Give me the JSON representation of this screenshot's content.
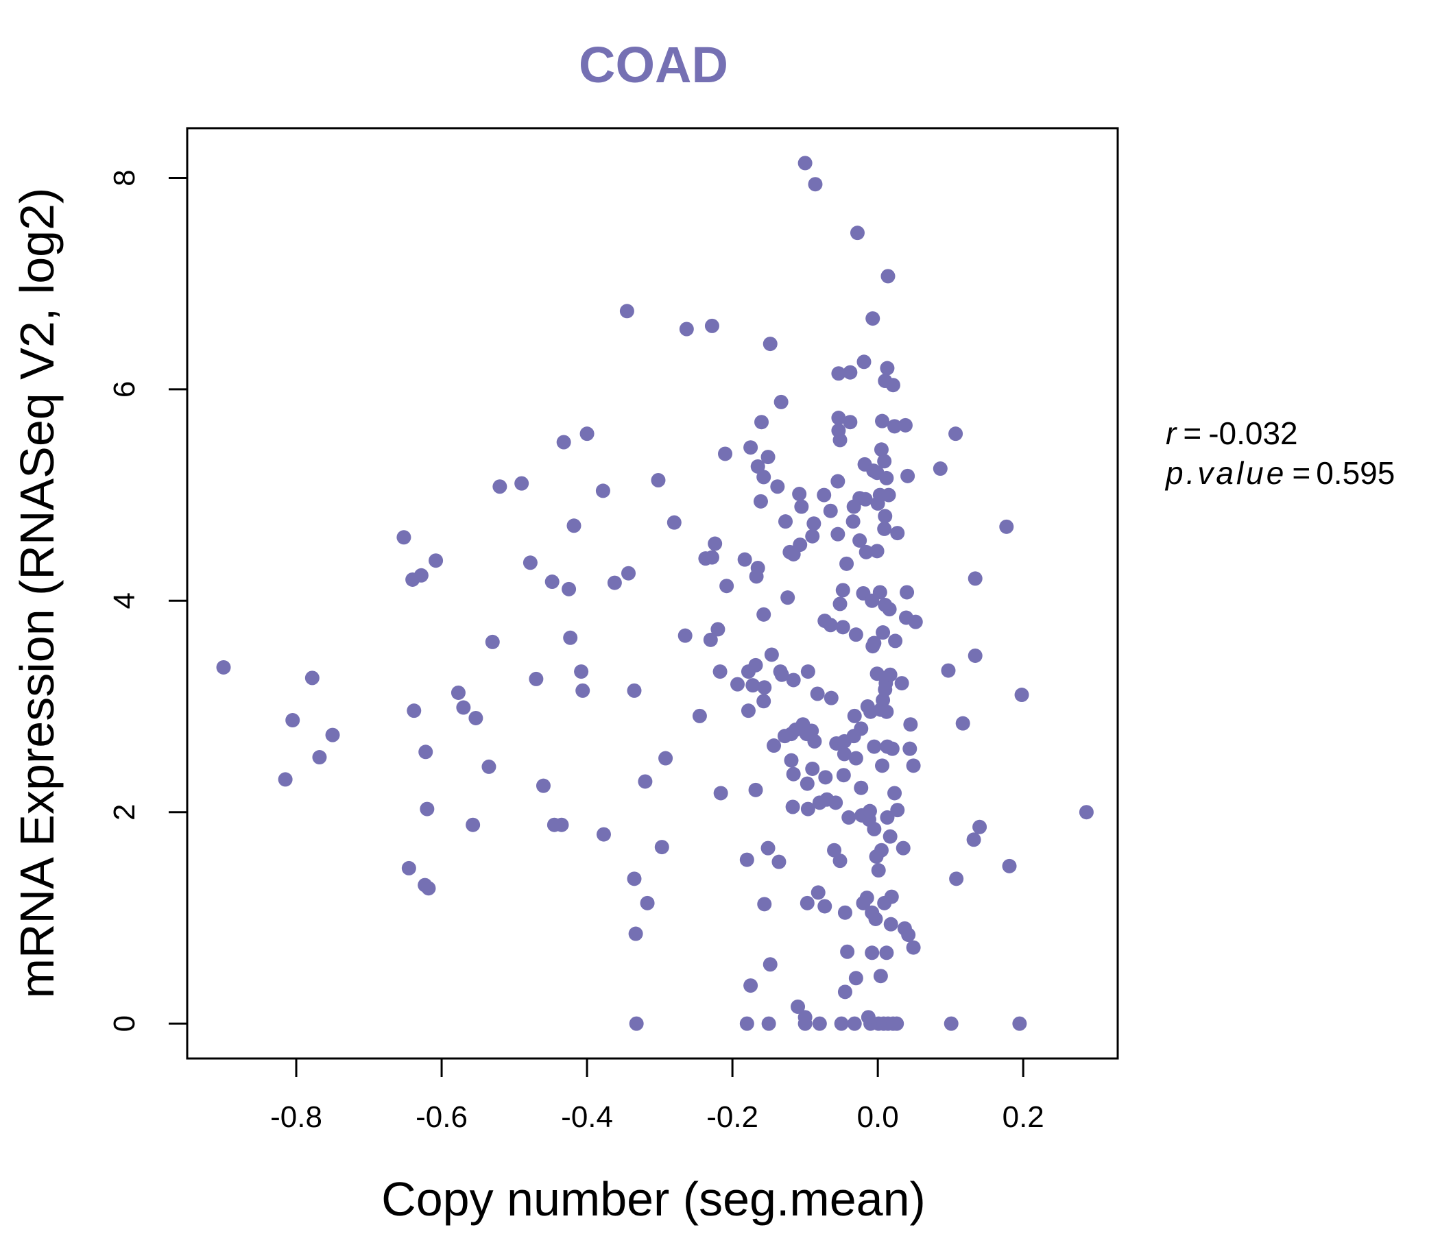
{
  "chart_data": {
    "type": "scatter",
    "title": "COAD",
    "xlabel": "Copy number (seg.mean)",
    "ylabel": "mRNA Expression (RNASeq V2, log2)",
    "xlim": [
      -0.95,
      0.33
    ],
    "ylim": [
      -0.33,
      8.47
    ],
    "xticks": [
      -0.8,
      -0.6,
      -0.4,
      -0.2,
      0.0,
      0.2
    ],
    "xtick_labels": [
      "-0.8",
      "-0.6",
      "-0.4",
      "-0.2",
      "0.0",
      "0.2"
    ],
    "yticks": [
      0,
      2,
      4,
      6,
      8
    ],
    "ytick_labels": [
      "0",
      "2",
      "4",
      "6",
      "8"
    ],
    "grid": false,
    "colors": {
      "title": "#7570b3",
      "points": "#7570b3",
      "axis": "#000000"
    },
    "annotation": {
      "r_label": "r",
      "r_value": "-0.032",
      "p_label": "p.value",
      "p_value": "0.595"
    },
    "series": [
      {
        "points": [
          [
            -0.9,
            3.37
          ],
          [
            -0.815,
            2.31
          ],
          [
            -0.805,
            2.87
          ],
          [
            -0.778,
            3.27
          ],
          [
            -0.768,
            2.52
          ],
          [
            -0.75,
            2.73
          ],
          [
            -0.652,
            4.6
          ],
          [
            -0.645,
            1.47
          ],
          [
            -0.64,
            4.2
          ],
          [
            -0.638,
            2.96
          ],
          [
            -0.628,
            4.24
          ],
          [
            -0.623,
            1.31
          ],
          [
            -0.622,
            2.57
          ],
          [
            -0.62,
            2.03
          ],
          [
            -0.618,
            1.28
          ],
          [
            -0.608,
            4.38
          ],
          [
            -0.577,
            3.13
          ],
          [
            -0.57,
            2.99
          ],
          [
            -0.557,
            1.88
          ],
          [
            -0.553,
            2.89
          ],
          [
            -0.535,
            2.43
          ],
          [
            -0.53,
            3.61
          ],
          [
            -0.52,
            5.08
          ],
          [
            -0.49,
            5.11
          ],
          [
            -0.478,
            4.36
          ],
          [
            -0.47,
            3.26
          ],
          [
            -0.46,
            2.25
          ],
          [
            -0.448,
            4.18
          ],
          [
            -0.445,
            1.88
          ],
          [
            -0.435,
            1.88
          ],
          [
            -0.432,
            5.5
          ],
          [
            -0.425,
            4.11
          ],
          [
            -0.423,
            3.65
          ],
          [
            -0.418,
            4.71
          ],
          [
            -0.408,
            3.33
          ],
          [
            -0.406,
            3.15
          ],
          [
            -0.4,
            5.58
          ],
          [
            -0.378,
            5.04
          ],
          [
            -0.377,
            1.79
          ],
          [
            -0.362,
            4.17
          ],
          [
            -0.345,
            6.74
          ],
          [
            -0.343,
            4.26
          ],
          [
            -0.335,
            1.37
          ],
          [
            -0.335,
            3.15
          ],
          [
            -0.333,
            0.85
          ],
          [
            -0.332,
            0.0
          ],
          [
            -0.32,
            2.29
          ],
          [
            -0.317,
            1.14
          ],
          [
            -0.302,
            5.14
          ],
          [
            -0.297,
            1.67
          ],
          [
            -0.292,
            2.51
          ],
          [
            -0.28,
            4.74
          ],
          [
            -0.265,
            3.67
          ],
          [
            -0.263,
            6.57
          ],
          [
            -0.245,
            2.91
          ],
          [
            -0.237,
            4.4
          ],
          [
            -0.23,
            3.63
          ],
          [
            -0.228,
            6.6
          ],
          [
            -0.228,
            4.41
          ],
          [
            -0.224,
            4.54
          ],
          [
            -0.22,
            3.73
          ],
          [
            -0.217,
            3.33
          ],
          [
            -0.216,
            2.18
          ],
          [
            -0.21,
            5.39
          ],
          [
            -0.208,
            4.14
          ],
          [
            -0.193,
            3.21
          ],
          [
            -0.183,
            4.39
          ],
          [
            -0.18,
            1.55
          ],
          [
            -0.178,
            3.33
          ],
          [
            -0.18,
            0.0
          ],
          [
            -0.178,
            2.96
          ],
          [
            -0.175,
            5.45
          ],
          [
            -0.175,
            0.36
          ],
          [
            -0.172,
            3.2
          ],
          [
            -0.168,
            3.39
          ],
          [
            -0.168,
            2.21
          ],
          [
            -0.167,
            4.23
          ],
          [
            -0.165,
            4.31
          ],
          [
            -0.165,
            5.27
          ],
          [
            -0.161,
            4.94
          ],
          [
            -0.16,
            5.69
          ],
          [
            -0.157,
            5.17
          ],
          [
            -0.157,
            3.05
          ],
          [
            -0.156,
            3.18
          ],
          [
            -0.157,
            3.87
          ],
          [
            -0.156,
            1.13
          ],
          [
            -0.151,
            5.36
          ],
          [
            -0.151,
            1.66
          ],
          [
            -0.15,
            0.0
          ],
          [
            -0.148,
            0.56
          ],
          [
            -0.148,
            6.43
          ],
          [
            -0.146,
            3.49
          ],
          [
            -0.143,
            2.63
          ],
          [
            -0.138,
            5.08
          ],
          [
            -0.136,
            1.53
          ],
          [
            -0.134,
            3.33
          ],
          [
            -0.133,
            5.88
          ],
          [
            -0.132,
            3.3
          ],
          [
            -0.128,
            2.72
          ],
          [
            -0.127,
            4.75
          ],
          [
            -0.124,
            4.03
          ],
          [
            -0.121,
            4.46
          ],
          [
            -0.119,
            2.74
          ],
          [
            -0.119,
            2.49
          ],
          [
            -0.117,
            2.05
          ],
          [
            -0.116,
            2.36
          ],
          [
            -0.116,
            4.44
          ],
          [
            -0.116,
            3.25
          ],
          [
            -0.113,
            2.78
          ],
          [
            -0.11,
            0.16
          ],
          [
            -0.108,
            5.01
          ],
          [
            -0.107,
            4.53
          ],
          [
            -0.105,
            4.89
          ],
          [
            -0.103,
            2.83
          ],
          [
            -0.1,
            8.14
          ],
          [
            -0.1,
            0.0
          ],
          [
            -0.1,
            0.06
          ],
          [
            -0.098,
            2.74
          ],
          [
            -0.097,
            2.27
          ],
          [
            -0.097,
            1.14
          ],
          [
            -0.096,
            2.03
          ],
          [
            -0.096,
            3.33
          ],
          [
            -0.091,
            2.77
          ],
          [
            -0.09,
            4.61
          ],
          [
            -0.09,
            2.41
          ],
          [
            -0.088,
            4.73
          ],
          [
            -0.087,
            2.67
          ],
          [
            -0.086,
            7.94
          ],
          [
            -0.083,
            3.12
          ],
          [
            -0.082,
            1.24
          ],
          [
            -0.08,
            2.09
          ],
          [
            -0.08,
            0.0
          ],
          [
            -0.074,
            5.0
          ],
          [
            -0.073,
            3.81
          ],
          [
            -0.073,
            1.11
          ],
          [
            -0.072,
            2.33
          ],
          [
            -0.07,
            2.12
          ],
          [
            -0.065,
            4.85
          ],
          [
            -0.065,
            3.77
          ],
          [
            -0.064,
            3.08
          ],
          [
            -0.06,
            1.64
          ],
          [
            -0.058,
            2.09
          ],
          [
            -0.057,
            2.65
          ],
          [
            -0.055,
            5.13
          ],
          [
            -0.055,
            4.63
          ],
          [
            -0.054,
            5.61
          ],
          [
            -0.054,
            6.15
          ],
          [
            -0.054,
            5.73
          ],
          [
            -0.052,
            5.52
          ],
          [
            -0.052,
            3.97
          ],
          [
            -0.052,
            1.54
          ],
          [
            -0.05,
            0.0
          ],
          [
            -0.048,
            3.75
          ],
          [
            -0.048,
            4.1
          ],
          [
            -0.047,
            2.35
          ],
          [
            -0.046,
            2.55
          ],
          [
            -0.046,
            2.67
          ],
          [
            -0.045,
            1.05
          ],
          [
            -0.045,
            0.3
          ],
          [
            -0.043,
            4.35
          ],
          [
            -0.042,
            0.68
          ],
          [
            -0.04,
            1.95
          ],
          [
            -0.038,
            6.16
          ],
          [
            -0.038,
            5.69
          ],
          [
            -0.034,
            4.75
          ],
          [
            -0.033,
            4.89
          ],
          [
            -0.033,
            2.72
          ],
          [
            -0.032,
            2.91
          ],
          [
            -0.032,
            0.0
          ],
          [
            -0.03,
            0.43
          ],
          [
            -0.03,
            3.68
          ],
          [
            -0.03,
            2.51
          ],
          [
            -0.028,
            7.48
          ],
          [
            -0.025,
            4.97
          ],
          [
            -0.025,
            4.57
          ],
          [
            -0.023,
            2.23
          ],
          [
            -0.023,
            2.79
          ],
          [
            -0.022,
            1.97
          ],
          [
            -0.02,
            1.14
          ],
          [
            -0.02,
            4.07
          ],
          [
            -0.019,
            6.26
          ],
          [
            -0.018,
            5.29
          ],
          [
            -0.017,
            4.96
          ],
          [
            -0.016,
            4.46
          ],
          [
            -0.015,
            1.19
          ],
          [
            -0.014,
            3.0
          ],
          [
            -0.013,
            0.06
          ],
          [
            -0.012,
            1.93
          ],
          [
            -0.011,
            2.01
          ],
          [
            -0.01,
            2.95
          ],
          [
            -0.01,
            0.0
          ],
          [
            -0.008,
            1.05
          ],
          [
            -0.008,
            0.67
          ],
          [
            -0.008,
            4.0
          ],
          [
            -0.007,
            6.67
          ],
          [
            -0.007,
            3.57
          ],
          [
            -0.006,
            5.23
          ],
          [
            -0.005,
            2.62
          ],
          [
            -0.005,
            3.6
          ],
          [
            -0.005,
            1.84
          ],
          [
            -0.003,
            0.99
          ],
          [
            -0.002,
            1.58
          ],
          [
            -0.001,
            3.31
          ],
          [
            -0.001,
            4.47
          ],
          [
            -0.001,
            5.21
          ],
          [
            0.0,
            4.92
          ],
          [
            0.001,
            1.45
          ],
          [
            0.001,
            0.0
          ],
          [
            0.003,
            5.0
          ],
          [
            0.003,
            4.08
          ],
          [
            0.004,
            0.45
          ],
          [
            0.004,
            2.97
          ],
          [
            0.005,
            1.64
          ],
          [
            0.005,
            5.43
          ],
          [
            0.006,
            5.7
          ],
          [
            0.006,
            2.44
          ],
          [
            0.007,
            3.06
          ],
          [
            0.007,
            3.7
          ],
          [
            0.008,
            0.0
          ],
          [
            0.009,
            1.14
          ],
          [
            0.009,
            5.32
          ],
          [
            0.009,
            4.68
          ],
          [
            0.01,
            4.8
          ],
          [
            0.01,
            6.08
          ],
          [
            0.01,
            3.96
          ],
          [
            0.01,
            3.16
          ],
          [
            0.011,
            3.22
          ],
          [
            0.012,
            2.95
          ],
          [
            0.012,
            5.16
          ],
          [
            0.012,
            0.67
          ],
          [
            0.013,
            1.95
          ],
          [
            0.013,
            6.2
          ],
          [
            0.013,
            2.62
          ],
          [
            0.014,
            0.0
          ],
          [
            0.014,
            7.07
          ],
          [
            0.015,
            5.0
          ],
          [
            0.016,
            3.92
          ],
          [
            0.017,
            3.3
          ],
          [
            0.017,
            1.77
          ],
          [
            0.018,
            0.94
          ],
          [
            0.019,
            1.2
          ],
          [
            0.02,
            2.6
          ],
          [
            0.021,
            0.0
          ],
          [
            0.021,
            6.04
          ],
          [
            0.023,
            5.65
          ],
          [
            0.023,
            2.18
          ],
          [
            0.024,
            3.62
          ],
          [
            0.026,
            0.0
          ],
          [
            0.027,
            4.64
          ],
          [
            0.027,
            2.02
          ],
          [
            0.033,
            3.22
          ],
          [
            0.035,
            1.66
          ],
          [
            0.037,
            0.9
          ],
          [
            0.038,
            5.66
          ],
          [
            0.039,
            3.84
          ],
          [
            0.04,
            4.08
          ],
          [
            0.041,
            5.18
          ],
          [
            0.042,
            0.84
          ],
          [
            0.044,
            2.6
          ],
          [
            0.045,
            2.83
          ],
          [
            0.049,
            2.44
          ],
          [
            0.049,
            0.72
          ],
          [
            0.052,
            3.8
          ],
          [
            0.086,
            5.25
          ],
          [
            0.097,
            3.34
          ],
          [
            0.101,
            0.0
          ],
          [
            0.107,
            5.58
          ],
          [
            0.108,
            1.37
          ],
          [
            0.117,
            2.84
          ],
          [
            0.132,
            1.74
          ],
          [
            0.134,
            4.21
          ],
          [
            0.134,
            3.48
          ],
          [
            0.14,
            1.86
          ],
          [
            0.177,
            4.7
          ],
          [
            0.181,
            1.49
          ],
          [
            0.195,
            0.0
          ],
          [
            0.198,
            3.11
          ],
          [
            0.287,
            2.0
          ]
        ]
      }
    ]
  }
}
